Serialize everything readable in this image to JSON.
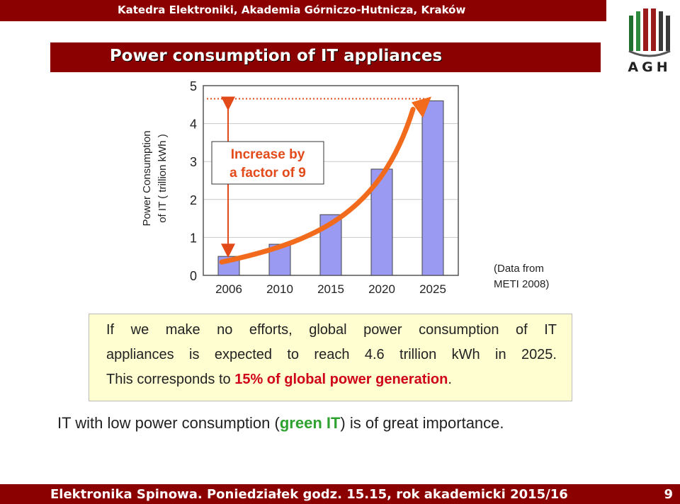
{
  "header": {
    "institution": "Katedra Elektroniki, Akademia Górniczo-Hutnicza, Kraków"
  },
  "logo": {
    "text": "AGH"
  },
  "slide": {
    "title": "Power consumption of IT appliances"
  },
  "chart_data": {
    "type": "bar",
    "categories": [
      "2006",
      "2010",
      "2015",
      "2020",
      "2025"
    ],
    "values": [
      0.5,
      0.82,
      1.6,
      2.8,
      4.6
    ],
    "ylabel_line1": "Power Consumption",
    "ylabel_line2": "of IT ( trillion kWh )",
    "ylim": [
      0,
      5
    ],
    "yticks": [
      "0",
      "1",
      "2",
      "3",
      "4",
      "5"
    ],
    "annotation_line1": "Increase by",
    "annotation_line2": "a factor of 9",
    "bar_color": "#9a9af2",
    "arrow_color": "#f26b1d",
    "annotation_color": "#e34a1a"
  },
  "source_note": {
    "line1": "(Data from",
    "line2": "METI 2008)"
  },
  "textbox": {
    "line1": "If we make no efforts, global power consumption of IT",
    "line2": "appliances is expected to reach 4.6 trillion kWh in 2025.",
    "line3_prefix": "This corresponds to ",
    "line3_highlight": "15% of global power generation",
    "line3_suffix": "."
  },
  "bottom_line": {
    "prefix": "IT with low power consumption (",
    "highlight": "green IT",
    "suffix": ") is of great importance."
  },
  "footer": {
    "text": "Elektronika Spinowa. Poniedziałek godz. 15.15, rok akademicki 2015/16",
    "page": "9"
  },
  "colors": {
    "brand": "#8b0000",
    "highlight_red": "#d0021b",
    "highlight_green": "#2ea12e",
    "textbox_bg": "#fefed0"
  }
}
